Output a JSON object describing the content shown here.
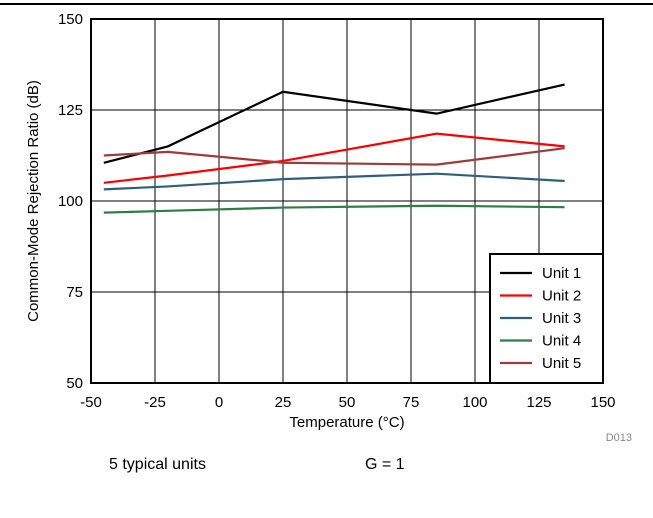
{
  "chart_data": {
    "type": "line",
    "title": "",
    "xlabel": "Temperature (°C)",
    "ylabel": "Common-Mode Rejection Ratio (dB)",
    "xlim": [
      -50,
      150
    ],
    "ylim": [
      50,
      150
    ],
    "xticks": [
      -50,
      -25,
      0,
      25,
      50,
      75,
      100,
      125,
      150
    ],
    "yticks": [
      50,
      75,
      100,
      125,
      150
    ],
    "grid": true,
    "legend_position": "bottom-right",
    "series": [
      {
        "name": "Unit 1",
        "color": "#000000",
        "x": [
          -45,
          -20,
          25,
          85,
          135
        ],
        "values": [
          110.5,
          115,
          130,
          124,
          132
        ]
      },
      {
        "name": "Unit 2",
        "color": "#ff0000",
        "x": [
          -45,
          -20,
          25,
          85,
          135
        ],
        "values": [
          105,
          107,
          111,
          118.5,
          115
        ]
      },
      {
        "name": "Unit 3",
        "color": "#2e5f7f",
        "x": [
          -45,
          -20,
          25,
          85,
          135
        ],
        "values": [
          103.2,
          104,
          106,
          107.5,
          105.5
        ]
      },
      {
        "name": "Unit 4",
        "color": "#2e7d46",
        "x": [
          -45,
          -20,
          25,
          85,
          135
        ],
        "values": [
          96.8,
          97.3,
          98.2,
          98.7,
          98.3
        ]
      },
      {
        "name": "Unit 5",
        "color": "#a03a3a",
        "x": [
          -45,
          -20,
          25,
          85,
          135
        ],
        "values": [
          112.5,
          113.5,
          110.5,
          110,
          114.5
        ]
      }
    ]
  },
  "figure_id": "D013",
  "notes": {
    "units_text": "5 typical units",
    "gain_text": "G = 1"
  }
}
